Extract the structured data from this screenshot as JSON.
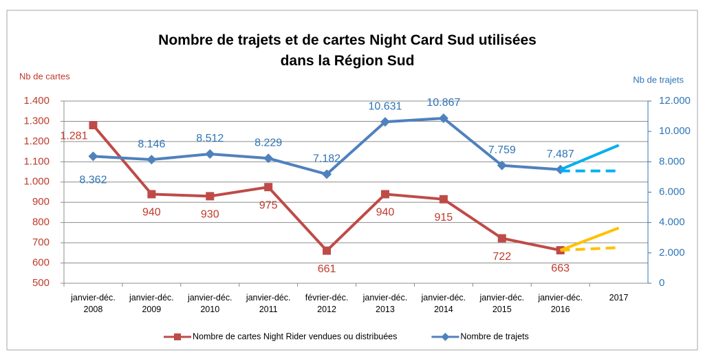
{
  "chart_data": {
    "type": "line",
    "title": "Nombre de trajets et de cartes Night Card Sud  utilisées\ndans la Région Sud",
    "ylabel": "Nb de cartes",
    "y2label": "Nb de trajets",
    "categories": [
      "janvier-déc.\n2008",
      "janvier-déc.\n2009",
      "janvier-déc.\n2010",
      "janvier-déc.\n2011",
      "février-déc.\n2012",
      "janvier-déc.\n2013",
      "janvier-déc.\n2014",
      "janvier-déc.\n2015",
      "janvier-déc.\n2016",
      "2017"
    ],
    "ylim": [
      500,
      1400
    ],
    "yticks": [
      500,
      600,
      700,
      800,
      900,
      {
        "value": 1000,
        "label": "1.000"
      },
      {
        "value": 1100,
        "label": "1.100"
      },
      {
        "value": 1200,
        "label": "1.200"
      },
      {
        "value": 1300,
        "label": "1.300"
      },
      {
        "value": 1400,
        "label": "1.400"
      }
    ],
    "y2lim": [
      0,
      12000
    ],
    "y2ticks": [
      0,
      {
        "value": 2000,
        "label": "2.000"
      },
      {
        "value": 4000,
        "label": "4.000"
      },
      {
        "value": 6000,
        "label": "6.000"
      },
      {
        "value": 8000,
        "label": "8.000"
      },
      {
        "value": 10000,
        "label": "10.000"
      },
      {
        "value": 12000,
        "label": "12.000"
      }
    ],
    "grid": true,
    "legend": "bottom",
    "series": [
      {
        "name": "Nombre de cartes Night Rider vendues ou distribuées",
        "color": "#be4b48",
        "marker": "square",
        "values": [
          1281,
          940,
          930,
          975,
          661,
          940,
          915,
          722,
          663,
          null
        ],
        "value_labels": [
          "1.281",
          "940",
          "930",
          "975",
          "661",
          "940",
          "915",
          "722",
          "663",
          null
        ]
      },
      {
        "name": "Nombre de trajets",
        "color": "#4f81bd",
        "marker": "diamond",
        "axis": "y2",
        "values": [
          8362,
          8146,
          8512,
          8229,
          7182,
          10631,
          10867,
          7759,
          7487,
          null
        ],
        "value_labels": [
          "8.362",
          "8.146",
          "8.512",
          "8.229",
          "7.182",
          "10.631",
          "10.867",
          "7.759",
          "7.487",
          null
        ]
      },
      {
        "color": "#00b0f0",
        "axis": "y2",
        "values": [
          null,
          null,
          null,
          null,
          null,
          null,
          null,
          null,
          7487,
          9092
        ]
      },
      {
        "color": "#00b0f0",
        "axis": "y2",
        "dashed": true,
        "values": [
          null,
          null,
          null,
          null,
          null,
          null,
          null,
          null,
          7400,
          7400
        ]
      },
      {
        "color": "#ffc000",
        "values": [
          null,
          null,
          null,
          null,
          null,
          null,
          null,
          null,
          663,
          773
        ]
      },
      {
        "color": "#ffc000",
        "dashed": true,
        "values": [
          null,
          null,
          null,
          null,
          null,
          null,
          null,
          null,
          663,
          676
        ]
      }
    ]
  }
}
